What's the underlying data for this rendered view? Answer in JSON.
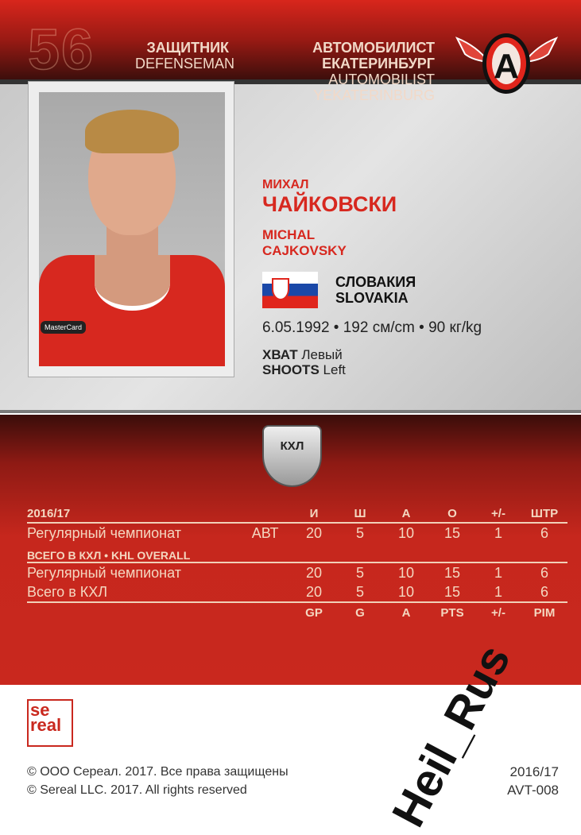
{
  "header": {
    "number": "56",
    "position_ru": "ЗАЩИТНИК",
    "position_en": "DEFENSEMAN",
    "team_ru_1": "АВТОМОБИЛИСТ",
    "team_ru_2": "ЕКАТЕРИНБУРГ",
    "team_en_1": "AUTOMOBILIST",
    "team_en_2": "YEKATERINBURG",
    "logo_letter": "A"
  },
  "player": {
    "first_ru": "МИХАЛ",
    "last_ru": "ЧАЙКОВСКИ",
    "first_en": "MICHAL",
    "last_en": "CAJKOVSKY",
    "country_ru": "СЛОВАКИЯ",
    "country_en": "SLOVAKIA",
    "bio": "6.05.1992 • 192 см/cm • 90 кг/kg",
    "shoots_ru_label": "ХВАТ",
    "shoots_ru": "Левый",
    "shoots_en_label": "SHOOTS",
    "shoots_en": "Left",
    "jersey_sponsor": "MasterCard"
  },
  "khl_logo": "КХЛ",
  "stats": {
    "season": "2016/17",
    "headers_ru": [
      "И",
      "Ш",
      "А",
      "О",
      "+/-",
      "ШТР"
    ],
    "headers_en": [
      "GP",
      "G",
      "A",
      "PTS",
      "+/-",
      "PIM"
    ],
    "season_rows": [
      {
        "label": "Регулярный чемпионат",
        "team": "АВТ",
        "values": [
          "20",
          "5",
          "10",
          "15",
          "1",
          "6"
        ]
      }
    ],
    "overall_title": "ВСЕГО В КХЛ • KHL OVERALL",
    "overall_rows": [
      {
        "label": "Регулярный чемпионат",
        "values": [
          "20",
          "5",
          "10",
          "15",
          "1",
          "6"
        ]
      },
      {
        "label": "Всего в КХЛ",
        "values": [
          "20",
          "5",
          "10",
          "15",
          "1",
          "6"
        ]
      }
    ]
  },
  "footer": {
    "brand": "se real",
    "copyright_ru": "© ООО Сереал. 2017. Все права защищены",
    "copyright_en": "© Sereal LLC. 2017. All rights reserved",
    "season": "2016/17",
    "card_code": "AVT-008"
  },
  "watermark": "Heil_Rus",
  "colors": {
    "red": "#c9281e",
    "cream": "#f4d7c0"
  }
}
